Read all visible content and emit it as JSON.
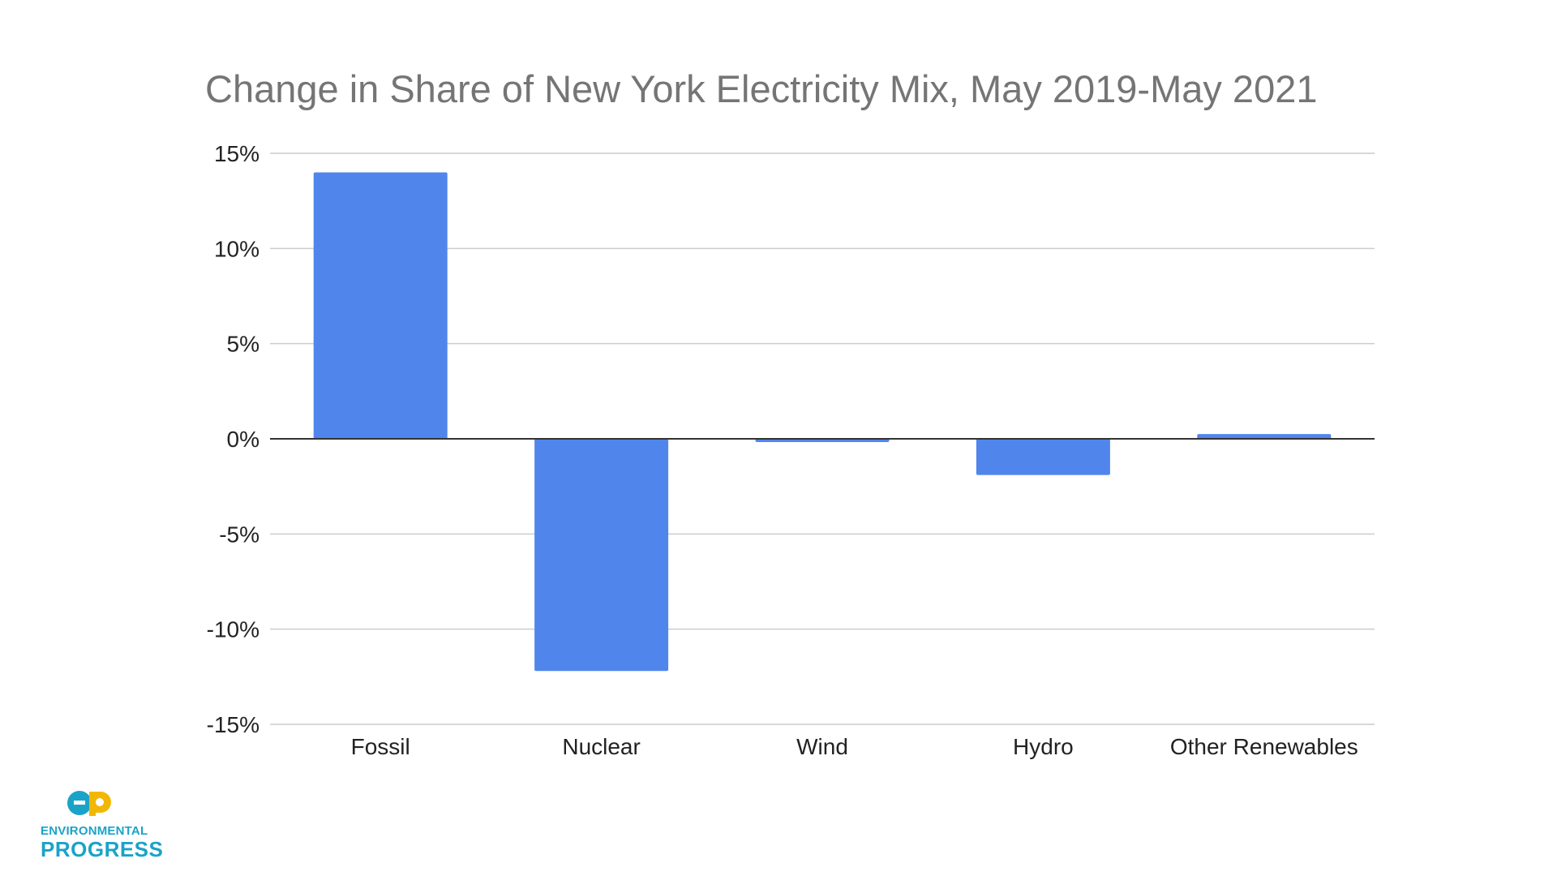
{
  "chart_data": {
    "type": "bar",
    "title": "Change in Share of New York Electricity Mix, May 2019-May 2021",
    "xlabel": "",
    "ylabel": "",
    "categories": [
      "Fossil",
      "Nuclear",
      "Wind",
      "Hydro",
      "Other Renewables"
    ],
    "values": [
      14.0,
      -12.2,
      -0.15,
      -1.9,
      0.25
    ],
    "ylim": [
      -15,
      15
    ],
    "yticks": [
      15,
      10,
      5,
      0,
      -5,
      -10,
      -15
    ],
    "ytick_labels": [
      "15%",
      "10%",
      "5%",
      "0%",
      "-5%",
      "-10%",
      "-15%"
    ],
    "grid": true,
    "legend": "none",
    "bar_color": "#5086ec",
    "grid_color": "#cccccc",
    "zero_line_color": "#333333"
  },
  "logo": {
    "line1": "ENVIRONMENTAL",
    "line2": "PROGRESS",
    "color_blue": "#1aa3c8",
    "color_yellow": "#f2b705"
  }
}
